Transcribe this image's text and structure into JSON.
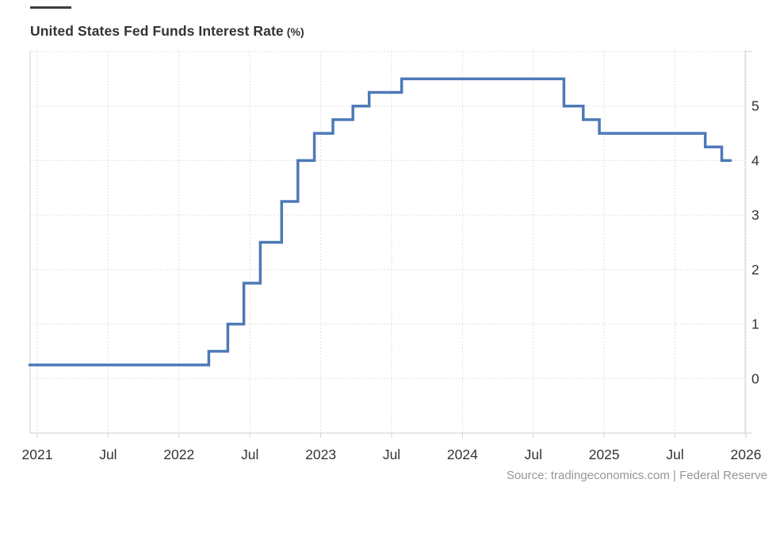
{
  "title": {
    "main": "United States Fed Funds Interest Rate",
    "unit": "(%)"
  },
  "source": "Source: tradingeconomics.com | Federal Reserve",
  "colors": {
    "line": "#4d79b8",
    "grid_dotted": "#d5d5d5",
    "axis_solid": "#d2d2d2",
    "axis_label": "#333333",
    "source_text": "#969696",
    "title_text": "#333333",
    "accent_bar": "#3d3d3d"
  },
  "chart_data": {
    "type": "line",
    "step": true,
    "title": "United States Fed Funds Interest Rate (%)",
    "xlabel": "",
    "ylabel": "",
    "legend": false,
    "grid": true,
    "x_range": {
      "start": "2020-12-12",
      "end": "2025-11-22"
    },
    "x_ticks": [
      {
        "label": "2021",
        "date": "2021-01-01"
      },
      {
        "label": "Jul",
        "date": "2021-07-01"
      },
      {
        "label": "2022",
        "date": "2022-01-01"
      },
      {
        "label": "Jul",
        "date": "2022-07-01"
      },
      {
        "label": "2023",
        "date": "2023-01-01"
      },
      {
        "label": "Jul",
        "date": "2023-07-01"
      },
      {
        "label": "2024",
        "date": "2024-01-01"
      },
      {
        "label": "Jul",
        "date": "2024-07-01"
      },
      {
        "label": "2025",
        "date": "2025-01-01"
      },
      {
        "label": "Jul",
        "date": "2025-07-01"
      },
      {
        "label": "2026",
        "date": "2026-01-01"
      }
    ],
    "y_axis": {
      "min": -1,
      "max": 6,
      "labeled_ticks": [
        0,
        1,
        2,
        3,
        4,
        5
      ]
    },
    "series": [
      {
        "name": "United States Fed Funds Interest Rate",
        "color": "#4d79b8",
        "points": [
          {
            "date": "2020-12-12",
            "value": 0.25
          },
          {
            "date": "2022-03-17",
            "value": 0.5
          },
          {
            "date": "2022-05-05",
            "value": 1.0
          },
          {
            "date": "2022-06-16",
            "value": 1.75
          },
          {
            "date": "2022-07-28",
            "value": 2.5
          },
          {
            "date": "2022-09-22",
            "value": 3.25
          },
          {
            "date": "2022-11-03",
            "value": 4.0
          },
          {
            "date": "2022-12-15",
            "value": 4.5
          },
          {
            "date": "2023-02-02",
            "value": 4.75
          },
          {
            "date": "2023-03-23",
            "value": 5.0
          },
          {
            "date": "2023-05-04",
            "value": 5.25
          },
          {
            "date": "2023-07-27",
            "value": 5.5
          },
          {
            "date": "2024-09-19",
            "value": 5.0
          },
          {
            "date": "2024-11-08",
            "value": 4.75
          },
          {
            "date": "2024-12-19",
            "value": 4.5
          },
          {
            "date": "2025-09-18",
            "value": 4.25
          },
          {
            "date": "2025-10-30",
            "value": 4.0
          }
        ]
      }
    ]
  }
}
